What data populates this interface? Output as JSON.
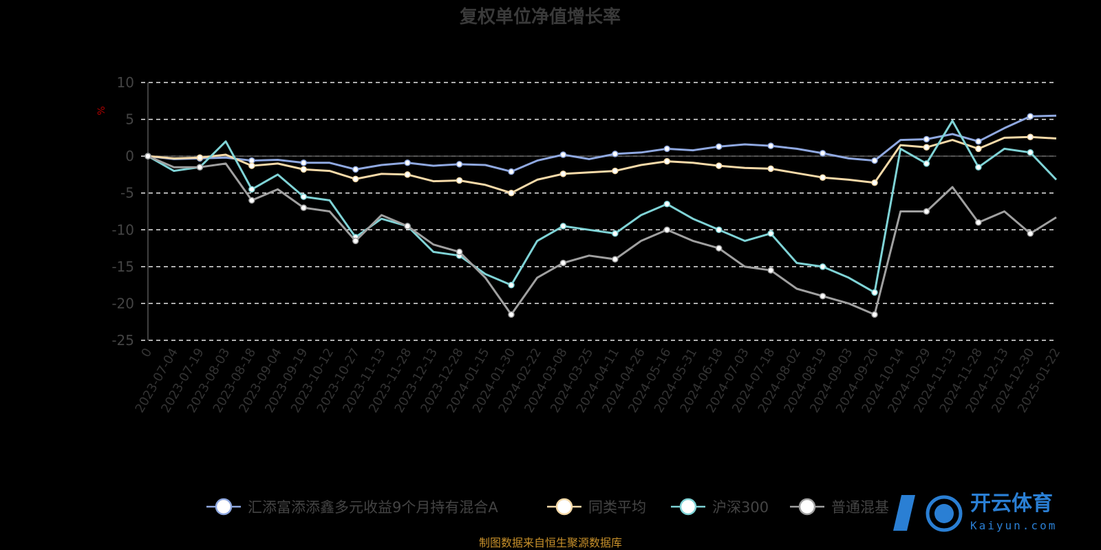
{
  "chart_data": {
    "type": "line",
    "title": "复权单位净值增长率",
    "ylabel": "%",
    "ylim": [
      -25,
      10
    ],
    "yticks": [
      10,
      5,
      0,
      -5,
      -10,
      -15,
      -20,
      -25
    ],
    "grid": true,
    "legend_position": "bottom",
    "x": [
      "0",
      "2023-07-04",
      "2023-07-19",
      "2023-08-03",
      "2023-08-18",
      "2023-09-04",
      "2023-09-19",
      "2023-10-12",
      "2023-10-27",
      "2023-11-13",
      "2023-11-28",
      "2023-12-13",
      "2023-12-28",
      "2024-01-15",
      "2024-01-30",
      "2024-02-22",
      "2024-03-08",
      "2024-03-25",
      "2024-04-11",
      "2024-04-26",
      "2024-05-16",
      "2024-05-31",
      "2024-06-18",
      "2024-07-03",
      "2024-07-18",
      "2024-08-02",
      "2024-08-19",
      "2024-09-03",
      "2024-09-20",
      "2024-10-14",
      "2024-10-29",
      "2024-11-13",
      "2024-11-28",
      "2024-12-13",
      "2024-12-30",
      "2025-01-22"
    ],
    "series": [
      {
        "name": "汇添富添添鑫多元收益9个月持有混合A",
        "color": "#8fa8e0",
        "values": [
          0,
          -0.4,
          -0.3,
          -0.2,
          -0.6,
          -0.5,
          -0.9,
          -0.9,
          -1.8,
          -1.2,
          -0.9,
          -1.3,
          -1.1,
          -1.2,
          -2.1,
          -0.6,
          0.2,
          -0.4,
          0.3,
          0.5,
          1.0,
          0.8,
          1.3,
          1.6,
          1.4,
          1.0,
          0.4,
          -0.3,
          -0.6,
          2.2,
          2.3,
          3.0,
          2.0,
          3.8,
          5.4,
          5.5
        ]
      },
      {
        "name": "同类平均",
        "color": "#f5d9a8",
        "values": [
          0,
          -0.3,
          -0.2,
          0.2,
          -1.3,
          -1.0,
          -1.8,
          -2.0,
          -3.1,
          -2.4,
          -2.5,
          -3.4,
          -3.3,
          -3.9,
          -5.0,
          -3.2,
          -2.4,
          -2.2,
          -2.0,
          -1.2,
          -0.7,
          -0.9,
          -1.3,
          -1.6,
          -1.7,
          -2.3,
          -2.9,
          -3.2,
          -3.6,
          1.5,
          1.2,
          2.2,
          1.0,
          2.5,
          2.6,
          2.4
        ]
      },
      {
        "name": "沪深300",
        "color": "#7fd3d6",
        "values": [
          0,
          -2.0,
          -1.5,
          2.0,
          -4.5,
          -2.5,
          -5.5,
          -6.0,
          -11.0,
          -8.5,
          -9.5,
          -13.0,
          -13.5,
          -16.0,
          -17.5,
          -11.5,
          -9.5,
          -10.0,
          -10.5,
          -8.0,
          -6.5,
          -8.5,
          -10.0,
          -11.5,
          -10.5,
          -14.5,
          -15.0,
          -16.5,
          -18.5,
          1.0,
          -1.0,
          4.8,
          -1.5,
          1.0,
          0.5,
          -3.2
        ]
      },
      {
        "name": "普通混基",
        "color": "#a0a0a0",
        "values": [
          0,
          -1.5,
          -1.5,
          -1.0,
          -6.0,
          -4.5,
          -7.0,
          -7.5,
          -11.5,
          -8.0,
          -9.5,
          -12.0,
          -13.0,
          -16.5,
          -21.5,
          -16.5,
          -14.5,
          -13.5,
          -14.0,
          -11.5,
          -10.0,
          -11.5,
          -12.5,
          -15.0,
          -15.5,
          -18.0,
          -19.0,
          -20.0,
          -21.5,
          -7.5,
          -7.5,
          -4.2,
          -9.0,
          -7.5,
          -10.5,
          -8.3
        ]
      }
    ]
  },
  "source_note": "制图数据来自恒生聚源数据库",
  "watermark": {
    "cn": "开云体育",
    "en": "Kaiyun.com"
  }
}
